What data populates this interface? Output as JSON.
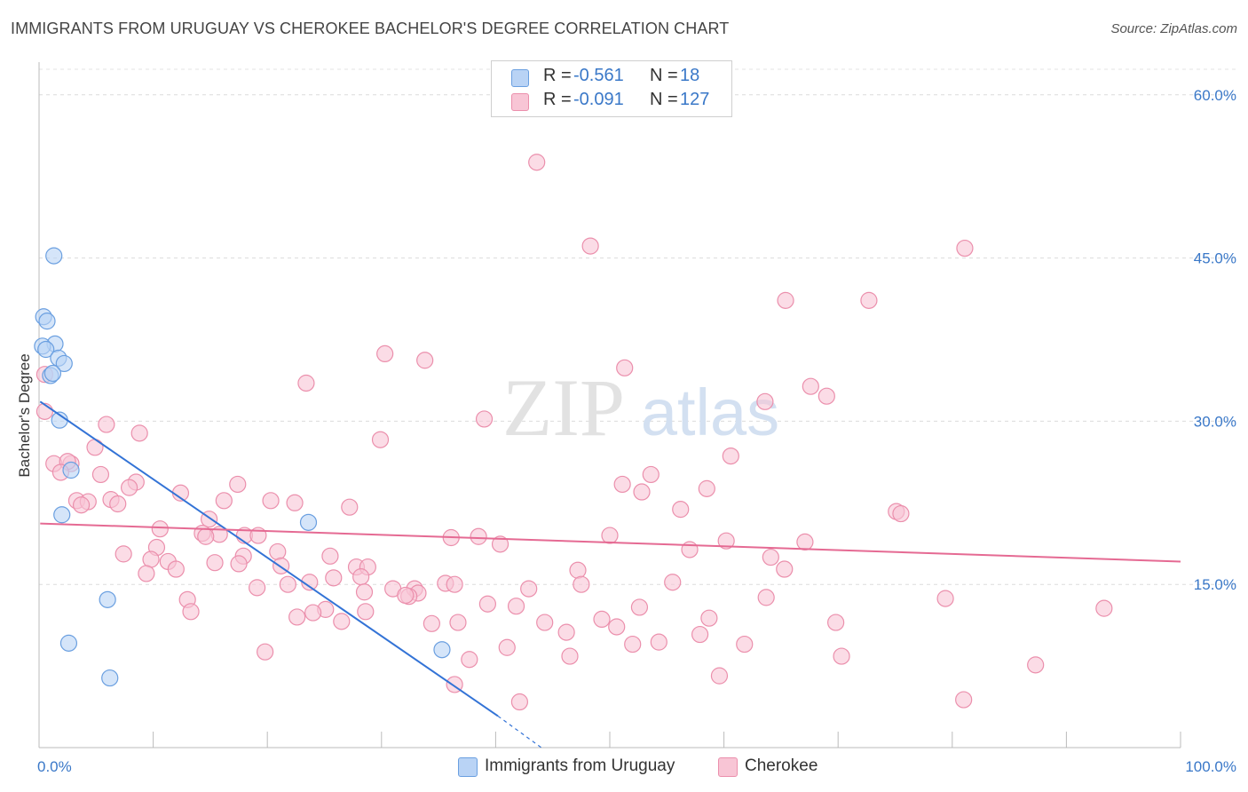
{
  "title": "IMMIGRANTS FROM URUGUAY VS CHEROKEE BACHELOR'S DEGREE CORRELATION CHART",
  "source": "Source: ZipAtlas.com",
  "watermark": {
    "zip": "ZIP",
    "atlas": "atlas"
  },
  "legend": [
    {
      "r_label": "R =",
      "r_value": "-0.561",
      "n_label": "N =",
      "n_value": "18"
    },
    {
      "r_label": "R =",
      "r_value": "-0.091",
      "n_label": "N =",
      "n_value": "127"
    }
  ],
  "colors": {
    "uruguay_fill": "#b9d3f5",
    "uruguay_stroke": "#6a9fe0",
    "uruguay_line": "#3373d6",
    "cherokee_fill": "#f8c5d5",
    "cherokee_stroke": "#eb8fac",
    "cherokee_line": "#e56a93",
    "axis_text": "#3a78c8"
  },
  "chart_data": {
    "type": "scatter",
    "title": "IMMIGRANTS FROM URUGUAY VS CHEROKEE BACHELOR'S DEGREE CORRELATION CHART",
    "xlabel": "",
    "ylabel": "Bachelor's Degree",
    "xlim": [
      0,
      100
    ],
    "ylim": [
      0,
      63
    ],
    "x_tick_labels": [
      "0.0%",
      "100.0%"
    ],
    "y_ticks": [
      15,
      30,
      45,
      60
    ],
    "y_tick_labels": [
      "15.0%",
      "30.0%",
      "45.0%",
      "60.0%"
    ],
    "grid": true,
    "legend_position": "top-center",
    "series": [
      {
        "name": "Immigrants from Uruguay",
        "trend": {
          "x": [
            0.1,
            40.2
          ],
          "y": [
            31.8,
            2.9
          ],
          "dash_to": [
            44,
            0
          ]
        },
        "points": [
          {
            "x": 1.3,
            "y": 45.2
          },
          {
            "x": 0.4,
            "y": 39.6
          },
          {
            "x": 0.7,
            "y": 39.2
          },
          {
            "x": 1.4,
            "y": 37.1
          },
          {
            "x": 0.3,
            "y": 36.9
          },
          {
            "x": 0.6,
            "y": 36.6
          },
          {
            "x": 1.7,
            "y": 35.8
          },
          {
            "x": 2.2,
            "y": 35.3
          },
          {
            "x": 1.0,
            "y": 34.2
          },
          {
            "x": 1.2,
            "y": 34.4
          },
          {
            "x": 1.8,
            "y": 30.1
          },
          {
            "x": 2.8,
            "y": 25.5
          },
          {
            "x": 2.0,
            "y": 21.4
          },
          {
            "x": 23.6,
            "y": 20.7
          },
          {
            "x": 6.0,
            "y": 13.6
          },
          {
            "x": 2.6,
            "y": 9.6
          },
          {
            "x": 6.2,
            "y": 6.4
          },
          {
            "x": 35.3,
            "y": 9.0
          }
        ]
      },
      {
        "name": "Cherokee",
        "trend": {
          "x": [
            0.1,
            100
          ],
          "y": [
            20.6,
            17.1
          ]
        },
        "points": [
          {
            "x": 43.6,
            "y": 53.8
          },
          {
            "x": 48.3,
            "y": 46.1
          },
          {
            "x": 81.1,
            "y": 45.9
          },
          {
            "x": 65.4,
            "y": 41.1
          },
          {
            "x": 72.7,
            "y": 41.1
          },
          {
            "x": 30.3,
            "y": 36.2
          },
          {
            "x": 33.8,
            "y": 35.6
          },
          {
            "x": 51.3,
            "y": 34.9
          },
          {
            "x": 23.4,
            "y": 33.5
          },
          {
            "x": 67.6,
            "y": 33.2
          },
          {
            "x": 69.0,
            "y": 32.3
          },
          {
            "x": 63.6,
            "y": 31.8
          },
          {
            "x": 0.5,
            "y": 30.9
          },
          {
            "x": 39.0,
            "y": 30.2
          },
          {
            "x": 5.9,
            "y": 29.7
          },
          {
            "x": 8.8,
            "y": 28.9
          },
          {
            "x": 29.9,
            "y": 28.3
          },
          {
            "x": 4.9,
            "y": 27.6
          },
          {
            "x": 60.6,
            "y": 26.8
          },
          {
            "x": 1.3,
            "y": 26.1
          },
          {
            "x": 2.8,
            "y": 26.1
          },
          {
            "x": 2.5,
            "y": 26.3
          },
          {
            "x": 1.9,
            "y": 25.3
          },
          {
            "x": 5.4,
            "y": 25.1
          },
          {
            "x": 53.6,
            "y": 25.1
          },
          {
            "x": 51.1,
            "y": 24.2
          },
          {
            "x": 17.4,
            "y": 24.2
          },
          {
            "x": 8.5,
            "y": 24.4
          },
          {
            "x": 7.9,
            "y": 23.9
          },
          {
            "x": 58.5,
            "y": 23.8
          },
          {
            "x": 52.8,
            "y": 23.5
          },
          {
            "x": 12.4,
            "y": 23.4
          },
          {
            "x": 6.3,
            "y": 22.8
          },
          {
            "x": 3.3,
            "y": 22.7
          },
          {
            "x": 4.3,
            "y": 22.6
          },
          {
            "x": 16.2,
            "y": 22.7
          },
          {
            "x": 20.3,
            "y": 22.7
          },
          {
            "x": 22.4,
            "y": 22.5
          },
          {
            "x": 3.7,
            "y": 22.3
          },
          {
            "x": 6.9,
            "y": 22.4
          },
          {
            "x": 27.2,
            "y": 22.1
          },
          {
            "x": 56.2,
            "y": 21.9
          },
          {
            "x": 75.1,
            "y": 21.7
          },
          {
            "x": 75.5,
            "y": 21.5
          },
          {
            "x": 14.9,
            "y": 21.0
          },
          {
            "x": 10.6,
            "y": 20.1
          },
          {
            "x": 14.3,
            "y": 19.7
          },
          {
            "x": 15.8,
            "y": 19.6
          },
          {
            "x": 14.6,
            "y": 19.4
          },
          {
            "x": 18.0,
            "y": 19.5
          },
          {
            "x": 19.2,
            "y": 19.5
          },
          {
            "x": 36.1,
            "y": 19.3
          },
          {
            "x": 38.5,
            "y": 19.4
          },
          {
            "x": 50.0,
            "y": 19.5
          },
          {
            "x": 60.2,
            "y": 19.0
          },
          {
            "x": 67.1,
            "y": 18.9
          },
          {
            "x": 40.4,
            "y": 18.7
          },
          {
            "x": 10.3,
            "y": 18.4
          },
          {
            "x": 57.0,
            "y": 18.2
          },
          {
            "x": 20.9,
            "y": 18.0
          },
          {
            "x": 7.4,
            "y": 17.8
          },
          {
            "x": 25.5,
            "y": 17.6
          },
          {
            "x": 17.9,
            "y": 17.6
          },
          {
            "x": 64.1,
            "y": 17.5
          },
          {
            "x": 11.3,
            "y": 17.1
          },
          {
            "x": 9.8,
            "y": 17.3
          },
          {
            "x": 15.4,
            "y": 17.0
          },
          {
            "x": 17.5,
            "y": 16.9
          },
          {
            "x": 21.2,
            "y": 16.7
          },
          {
            "x": 27.8,
            "y": 16.6
          },
          {
            "x": 28.8,
            "y": 16.6
          },
          {
            "x": 12.0,
            "y": 16.4
          },
          {
            "x": 47.2,
            "y": 16.3
          },
          {
            "x": 65.3,
            "y": 16.4
          },
          {
            "x": 9.4,
            "y": 16.0
          },
          {
            "x": 25.8,
            "y": 15.6
          },
          {
            "x": 28.2,
            "y": 15.7
          },
          {
            "x": 23.7,
            "y": 15.2
          },
          {
            "x": 21.8,
            "y": 15.0
          },
          {
            "x": 19.1,
            "y": 14.7
          },
          {
            "x": 35.6,
            "y": 15.1
          },
          {
            "x": 36.4,
            "y": 15.0
          },
          {
            "x": 47.5,
            "y": 15.0
          },
          {
            "x": 55.5,
            "y": 15.2
          },
          {
            "x": 31.0,
            "y": 14.6
          },
          {
            "x": 32.9,
            "y": 14.6
          },
          {
            "x": 42.9,
            "y": 14.6
          },
          {
            "x": 33.2,
            "y": 14.2
          },
          {
            "x": 32.4,
            "y": 13.9
          },
          {
            "x": 28.5,
            "y": 14.3
          },
          {
            "x": 32.1,
            "y": 14.0
          },
          {
            "x": 13.0,
            "y": 13.6
          },
          {
            "x": 63.7,
            "y": 13.8
          },
          {
            "x": 79.4,
            "y": 13.7
          },
          {
            "x": 39.3,
            "y": 13.2
          },
          {
            "x": 41.8,
            "y": 13.0
          },
          {
            "x": 52.6,
            "y": 12.9
          },
          {
            "x": 93.3,
            "y": 12.8
          },
          {
            "x": 25.1,
            "y": 12.7
          },
          {
            "x": 28.6,
            "y": 12.5
          },
          {
            "x": 13.3,
            "y": 12.5
          },
          {
            "x": 22.6,
            "y": 12.0
          },
          {
            "x": 24.0,
            "y": 12.4
          },
          {
            "x": 26.5,
            "y": 11.6
          },
          {
            "x": 49.3,
            "y": 11.8
          },
          {
            "x": 58.7,
            "y": 11.9
          },
          {
            "x": 34.4,
            "y": 11.4
          },
          {
            "x": 36.7,
            "y": 11.5
          },
          {
            "x": 44.3,
            "y": 11.5
          },
          {
            "x": 50.6,
            "y": 11.1
          },
          {
            "x": 69.8,
            "y": 11.5
          },
          {
            "x": 46.2,
            "y": 10.6
          },
          {
            "x": 57.9,
            "y": 10.4
          },
          {
            "x": 52.0,
            "y": 9.5
          },
          {
            "x": 54.3,
            "y": 9.7
          },
          {
            "x": 61.8,
            "y": 9.5
          },
          {
            "x": 41.0,
            "y": 9.2
          },
          {
            "x": 19.8,
            "y": 8.8
          },
          {
            "x": 46.5,
            "y": 8.4
          },
          {
            "x": 70.3,
            "y": 8.4
          },
          {
            "x": 37.7,
            "y": 8.1
          },
          {
            "x": 87.3,
            "y": 7.6
          },
          {
            "x": 59.6,
            "y": 6.6
          },
          {
            "x": 36.4,
            "y": 5.8
          },
          {
            "x": 81.0,
            "y": 4.4
          },
          {
            "x": 42.1,
            "y": 4.2
          },
          {
            "x": 0.5,
            "y": 34.3
          }
        ]
      }
    ]
  }
}
